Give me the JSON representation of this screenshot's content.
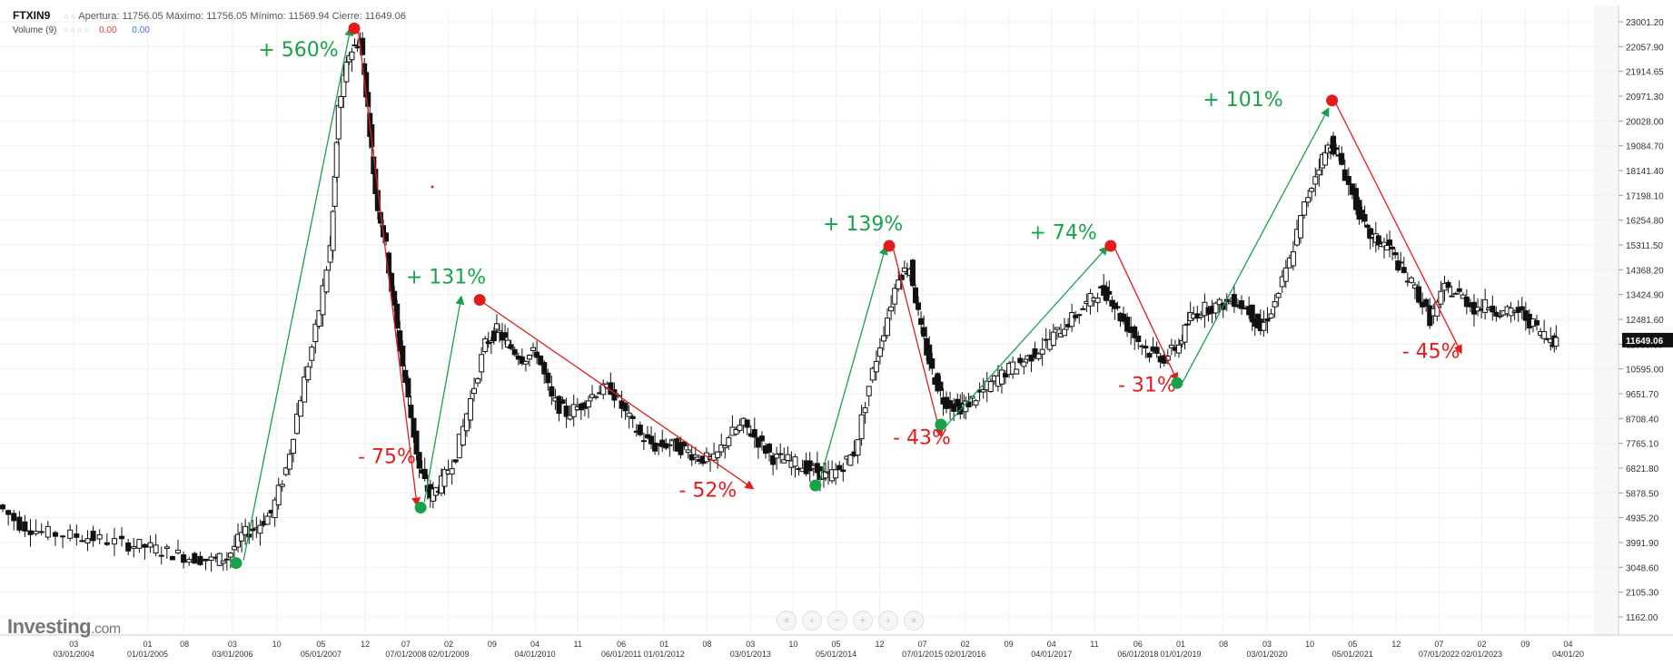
{
  "header": {
    "symbol": "FTXIN9",
    "ohlc": "Apertura: 11756.05 Máximo: 11756.05 Mínimo: 11569.94 Cierre: 11649.06",
    "volume_label": "Volume (9)",
    "volume_red": "0.00",
    "volume_blue": "0.00"
  },
  "logo": {
    "name": "Investing",
    "suffix": ".com"
  },
  "navigation": [
    "«",
    "‹",
    "−",
    "+",
    "›",
    "»"
  ],
  "colors": {
    "up_annotation": "#16a34a",
    "down_annotation": "#e11d1d",
    "candle": "#111111",
    "grid": "#eeeeee"
  },
  "chart_data": {
    "type": "candlestick",
    "ylim": [
      1000,
      23600
    ],
    "y_ticks": [
      "23001.20",
      "22057.90",
      "21914.65",
      "20971.30",
      "20028.00",
      "19084.70",
      "18141.40",
      "17198.10",
      "16254.80",
      "15311.50",
      "14368.20",
      "13424.90",
      "12481.60",
      "11538.30",
      "10595.00",
      "9651.70",
      "8708.40",
      "7765.10",
      "6821.80",
      "5878.50",
      "4935.20",
      "3991.90",
      "3048.60",
      "2105.30",
      "1162.00"
    ],
    "last_price": "11649.06",
    "x_tick_labels": [
      {
        "top": "03",
        "bottom": "03/01/2004",
        "x": 2004.0
      },
      {
        "top": "01",
        "bottom": "01/01/2005",
        "x": 2005.0
      },
      {
        "top": "08",
        "bottom": "",
        "x": 2005.5
      },
      {
        "top": "03",
        "bottom": "03/01/2006",
        "x": 2006.15
      },
      {
        "top": "10",
        "bottom": "",
        "x": 2006.75
      },
      {
        "top": "05",
        "bottom": "05/01/2007",
        "x": 2007.35
      },
      {
        "top": "12",
        "bottom": "",
        "x": 2007.95
      },
      {
        "top": "07",
        "bottom": "07/01/2008",
        "x": 2008.5
      },
      {
        "top": "02",
        "bottom": "02/01/2009",
        "x": 2009.08
      },
      {
        "top": "09",
        "bottom": "",
        "x": 2009.67
      },
      {
        "top": "04",
        "bottom": "04/01/2010",
        "x": 2010.25
      },
      {
        "top": "11",
        "bottom": "",
        "x": 2010.83
      },
      {
        "top": "06",
        "bottom": "06/01/2011",
        "x": 2011.42
      },
      {
        "top": "01",
        "bottom": "01/01/2012",
        "x": 2012.0
      },
      {
        "top": "08",
        "bottom": "",
        "x": 2012.58
      },
      {
        "top": "03",
        "bottom": "03/01/2013",
        "x": 2013.17
      },
      {
        "top": "10",
        "bottom": "",
        "x": 2013.75
      },
      {
        "top": "05",
        "bottom": "05/01/2014",
        "x": 2014.33
      },
      {
        "top": "12",
        "bottom": "",
        "x": 2014.92
      },
      {
        "top": "07",
        "bottom": "07/01/2015",
        "x": 2015.5
      },
      {
        "top": "02",
        "bottom": "02/01/2016",
        "x": 2016.08
      },
      {
        "top": "09",
        "bottom": "",
        "x": 2016.67
      },
      {
        "top": "04",
        "bottom": "04/01/2017",
        "x": 2017.25
      },
      {
        "top": "11",
        "bottom": "",
        "x": 2017.83
      },
      {
        "top": "06",
        "bottom": "06/01/2018",
        "x": 2018.42
      },
      {
        "top": "01",
        "bottom": "01/01/2019",
        "x": 2019.0
      },
      {
        "top": "08",
        "bottom": "",
        "x": 2019.58
      },
      {
        "top": "03",
        "bottom": "03/01/2020",
        "x": 2020.17
      },
      {
        "top": "10",
        "bottom": "",
        "x": 2020.75
      },
      {
        "top": "05",
        "bottom": "05/01/2021",
        "x": 2021.33
      },
      {
        "top": "12",
        "bottom": "",
        "x": 2021.92
      },
      {
        "top": "07",
        "bottom": "07/01/2022",
        "x": 2022.5
      },
      {
        "top": "02",
        "bottom": "02/01/2023",
        "x": 2023.08
      },
      {
        "top": "09",
        "bottom": "",
        "x": 2023.67
      },
      {
        "top": "04",
        "bottom": "04/01/20",
        "x": 2024.25
      }
    ],
    "price_path": [
      [
        2003.0,
        5700
      ],
      [
        2003.3,
        5000
      ],
      [
        2003.6,
        4700
      ],
      [
        2004.0,
        4600
      ],
      [
        2004.3,
        4500
      ],
      [
        2004.7,
        4300
      ],
      [
        2005.0,
        4200
      ],
      [
        2005.3,
        4000
      ],
      [
        2005.6,
        3800
      ],
      [
        2005.9,
        3700
      ],
      [
        2006.1,
        3800
      ],
      [
        2006.3,
        4600
      ],
      [
        2006.5,
        4900
      ],
      [
        2006.7,
        5400
      ],
      [
        2006.9,
        7000
      ],
      [
        2007.1,
        9600
      ],
      [
        2007.3,
        12000
      ],
      [
        2007.5,
        15000
      ],
      [
        2007.6,
        20000
      ],
      [
        2007.75,
        22000
      ],
      [
        2007.9,
        22500
      ],
      [
        2008.0,
        20000
      ],
      [
        2008.1,
        17000
      ],
      [
        2008.25,
        15000
      ],
      [
        2008.4,
        12000
      ],
      [
        2008.55,
        9500
      ],
      [
        2008.7,
        7000
      ],
      [
        2008.85,
        6000
      ],
      [
        2009.0,
        6500
      ],
      [
        2009.2,
        7500
      ],
      [
        2009.4,
        9500
      ],
      [
        2009.6,
        11500
      ],
      [
        2009.75,
        12000
      ],
      [
        2009.9,
        11500
      ],
      [
        2010.1,
        11000
      ],
      [
        2010.3,
        11200
      ],
      [
        2010.5,
        9500
      ],
      [
        2010.7,
        9000
      ],
      [
        2010.9,
        9300
      ],
      [
        2011.1,
        9800
      ],
      [
        2011.3,
        9900
      ],
      [
        2011.5,
        9000
      ],
      [
        2011.7,
        8200
      ],
      [
        2011.9,
        7800
      ],
      [
        2012.1,
        7900
      ],
      [
        2012.3,
        7700
      ],
      [
        2012.5,
        7400
      ],
      [
        2012.7,
        7300
      ],
      [
        2012.9,
        8200
      ],
      [
        2013.1,
        8600
      ],
      [
        2013.3,
        8000
      ],
      [
        2013.5,
        7400
      ],
      [
        2013.7,
        7300
      ],
      [
        2013.9,
        7100
      ],
      [
        2014.1,
        6900
      ],
      [
        2014.2,
        6700
      ],
      [
        2014.4,
        7000
      ],
      [
        2014.6,
        7600
      ],
      [
        2014.8,
        10000
      ],
      [
        2015.0,
        12000
      ],
      [
        2015.2,
        14000
      ],
      [
        2015.35,
        14300
      ],
      [
        2015.5,
        12000
      ],
      [
        2015.65,
        10500
      ],
      [
        2015.8,
        9500
      ],
      [
        2016.0,
        9200
      ],
      [
        2016.1,
        9300
      ],
      [
        2016.3,
        9700
      ],
      [
        2016.5,
        10200
      ],
      [
        2016.7,
        10600
      ],
      [
        2016.9,
        10900
      ],
      [
        2017.1,
        11300
      ],
      [
        2017.3,
        11800
      ],
      [
        2017.5,
        12300
      ],
      [
        2017.7,
        12800
      ],
      [
        2017.9,
        13400
      ],
      [
        2018.05,
        13300
      ],
      [
        2018.2,
        12500
      ],
      [
        2018.4,
        11800
      ],
      [
        2018.6,
        11200
      ],
      [
        2018.8,
        11000
      ],
      [
        2019.0,
        11500
      ],
      [
        2019.15,
        12500
      ],
      [
        2019.35,
        12800
      ],
      [
        2019.55,
        12900
      ],
      [
        2019.75,
        13100
      ],
      [
        2019.95,
        12700
      ],
      [
        2020.1,
        12000
      ],
      [
        2020.3,
        13000
      ],
      [
        2020.5,
        14500
      ],
      [
        2020.7,
        16500
      ],
      [
        2020.9,
        18000
      ],
      [
        2021.05,
        18800
      ],
      [
        2021.2,
        18000
      ],
      [
        2021.4,
        16500
      ],
      [
        2021.55,
        15500
      ],
      [
        2021.7,
        15200
      ],
      [
        2021.85,
        15000
      ],
      [
        2022.0,
        14200
      ],
      [
        2022.2,
        13500
      ],
      [
        2022.4,
        12400
      ],
      [
        2022.6,
        13500
      ],
      [
        2022.8,
        13300
      ],
      [
        2023.0,
        12800
      ],
      [
        2023.2,
        12900
      ],
      [
        2023.4,
        12600
      ],
      [
        2023.6,
        12700
      ],
      [
        2023.8,
        12200
      ],
      [
        2024.0,
        11700
      ],
      [
        2024.1,
        11650
      ]
    ],
    "annotations": [
      {
        "text": "+ 560%",
        "type": "up",
        "from": [
          2006.3,
          3700
        ],
        "to": [
          2007.75,
          22900
        ],
        "label_at": [
          2006.5,
          21900
        ]
      },
      {
        "text": "- 75%",
        "type": "down",
        "from": [
          2007.85,
          22900
        ],
        "to": [
          2008.65,
          5700
        ],
        "label_at": [
          2007.85,
          7200
        ]
      },
      {
        "text": "+ 131%",
        "type": "up",
        "from": [
          2008.75,
          5800
        ],
        "to": [
          2009.25,
          13200
        ],
        "label_at": [
          2008.5,
          13700
        ]
      },
      {
        "text": "- 52%",
        "type": "down",
        "from": [
          2009.55,
          13000
        ],
        "to": [
          2013.2,
          6300
        ],
        "label_at": [
          2012.2,
          6000
        ]
      },
      {
        "text": "+ 139%",
        "type": "up",
        "from": [
          2014.1,
          6500
        ],
        "to": [
          2015.0,
          15000
        ],
        "label_at": [
          2014.15,
          15600
        ]
      },
      {
        "text": "- 43%",
        "type": "down",
        "from": [
          2015.1,
          15000
        ],
        "to": [
          2015.75,
          8200
        ],
        "label_at": [
          2015.1,
          7900
        ]
      },
      {
        "text": "+ 74%",
        "type": "up",
        "from": [
          2015.8,
          8500
        ],
        "to": [
          2018.0,
          15000
        ],
        "label_at": [
          2016.95,
          15300
        ]
      },
      {
        "text": "- 31%",
        "type": "down",
        "from": [
          2018.1,
          15000
        ],
        "to": [
          2018.95,
          10200
        ],
        "label_at": [
          2018.15,
          9800
        ]
      },
      {
        "text": "+ 101%",
        "type": "up",
        "from": [
          2019.0,
          10000
        ],
        "to": [
          2021.0,
          20000
        ],
        "label_at": [
          2019.3,
          20100
        ]
      },
      {
        "text": "- 45%",
        "type": "down",
        "from": [
          2021.1,
          20200
        ],
        "to": [
          2022.8,
          11200
        ],
        "label_at": [
          2022.0,
          11000
        ]
      }
    ],
    "markers": [
      {
        "x": 2006.2,
        "y": 3600,
        "type": "low"
      },
      {
        "x": 2007.8,
        "y": 22900,
        "type": "high"
      },
      {
        "x": 2008.7,
        "y": 5600,
        "type": "low"
      },
      {
        "x": 2009.5,
        "y": 13100,
        "type": "high"
      },
      {
        "x": 2014.05,
        "y": 6400,
        "type": "low"
      },
      {
        "x": 2015.05,
        "y": 15050,
        "type": "high"
      },
      {
        "x": 2015.75,
        "y": 8600,
        "type": "low"
      },
      {
        "x": 2018.05,
        "y": 15050,
        "type": "high"
      },
      {
        "x": 2018.95,
        "y": 10100,
        "type": "low"
      },
      {
        "x": 2021.05,
        "y": 20300,
        "type": "high"
      }
    ],
    "grid": true
  }
}
